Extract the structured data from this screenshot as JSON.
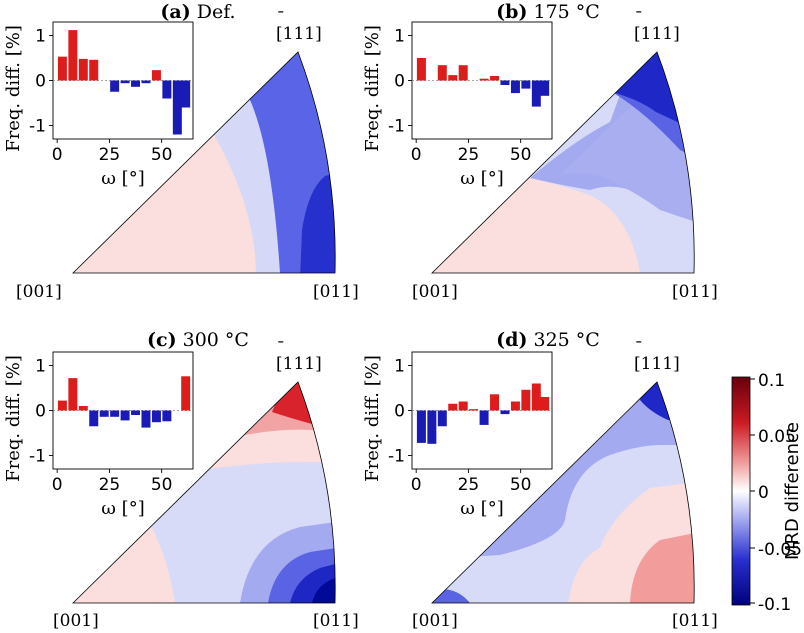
{
  "figure": {
    "colorbar": {
      "label": "MRD difference",
      "ticks": [
        "0.1",
        "0.05",
        "0",
        "-0.05",
        "-0.1"
      ],
      "range": [
        -0.1,
        0.1
      ],
      "colors": {
        "max": "#67000d",
        "high": "#d4202c",
        "mid_high": "#f4b4b4",
        "zero": "#ffffff",
        "mid_low": "#a8acf0",
        "low": "#1f27c8",
        "min": "#00007a"
      }
    },
    "poles": {
      "p001": "[001]",
      "p011": "[011]",
      "p111": "[111]",
      "p111_bar": "̄"
    }
  },
  "chart_data": [
    {
      "type": "bar",
      "panel": "(a)",
      "title_tag": "(a)",
      "title_rest": " Def.",
      "x": [
        2.5,
        7.5,
        12.5,
        17.5,
        22.5,
        27.5,
        32.5,
        37.5,
        42.5,
        47.5,
        52.5,
        57.5,
        61.5
      ],
      "values": [
        0.53,
        1.12,
        0.48,
        0.46,
        0.0,
        -0.25,
        -0.06,
        -0.14,
        -0.06,
        0.23,
        -0.4,
        -1.2,
        -0.6
      ],
      "xlabel": "ω [°]",
      "ylabel": "Freq. diff. [%]",
      "xticks": [
        "0",
        "25",
        "50"
      ],
      "yticks": [
        "1",
        "0",
        "-1"
      ],
      "xlim": [
        -2,
        65
      ],
      "ylim": [
        -1.3,
        1.3
      ],
      "map_levels": [
        "pink_corner",
        "light_blue",
        "blue",
        "dark_blue_edge"
      ]
    },
    {
      "type": "bar",
      "panel": "(b)",
      "title_tag": "(b)",
      "title_rest": " 175 °C",
      "x": [
        2.5,
        7.5,
        12.5,
        17.5,
        22.5,
        27.5,
        32.5,
        37.5,
        42.5,
        47.5,
        52.5,
        57.5,
        61.5
      ],
      "values": [
        0.5,
        0.0,
        0.34,
        0.12,
        0.34,
        0.0,
        0.04,
        0.1,
        -0.1,
        -0.28,
        -0.18,
        -0.58,
        -0.34
      ],
      "xlabel": "ω [°]",
      "ylabel": "Freq. diff. [%]",
      "xticks": [
        "0",
        "25",
        "50"
      ],
      "yticks": [
        "1",
        "0",
        "-1"
      ],
      "xlim": [
        -2,
        65
      ],
      "ylim": [
        -1.3,
        1.3
      ],
      "map_levels": [
        "pink_corner",
        "light_blue",
        "blue",
        "dark_blue_top"
      ]
    },
    {
      "type": "bar",
      "panel": "(c)",
      "title_tag": "(c)",
      "title_rest": " 300 °C",
      "x": [
        2.5,
        7.5,
        12.5,
        17.5,
        22.5,
        27.5,
        32.5,
        37.5,
        42.5,
        47.5,
        52.5,
        57.5,
        61.5
      ],
      "values": [
        0.22,
        0.72,
        0.1,
        -0.35,
        -0.14,
        -0.14,
        -0.22,
        -0.1,
        -0.38,
        -0.26,
        -0.24,
        0.0,
        0.76
      ],
      "xlabel": "ω [°]",
      "ylabel": "Freq. diff. [%]",
      "xticks": [
        "0",
        "25",
        "50"
      ],
      "yticks": [
        "1",
        "0",
        "-1"
      ],
      "xlim": [
        -2,
        65
      ],
      "ylim": [
        -1.3,
        1.3
      ],
      "map_levels": [
        "red_top",
        "pink_top",
        "light_blue",
        "blue_bottom_right",
        "pink_corner"
      ]
    },
    {
      "type": "bar",
      "panel": "(d)",
      "title_tag": "(d)",
      "title_rest": " 325 °C",
      "x": [
        2.5,
        7.5,
        12.5,
        17.5,
        22.5,
        27.5,
        32.5,
        37.5,
        42.5,
        47.5,
        52.5,
        57.5,
        61.5
      ],
      "values": [
        -0.72,
        -0.74,
        -0.35,
        0.15,
        0.2,
        0.03,
        -0.32,
        0.36,
        -0.08,
        0.2,
        0.46,
        0.6,
        0.3
      ],
      "xlabel": "ω [°]",
      "ylabel": "Freq. diff. [%]",
      "xticks": [
        "0",
        "25",
        "50"
      ],
      "yticks": [
        "1",
        "0",
        "-1"
      ],
      "xlim": [
        -2,
        65
      ],
      "ylim": [
        -1.3,
        1.3
      ],
      "map_levels": [
        "blue_top",
        "light_blue",
        "pink_bottom_right",
        "blue_corner"
      ]
    }
  ]
}
